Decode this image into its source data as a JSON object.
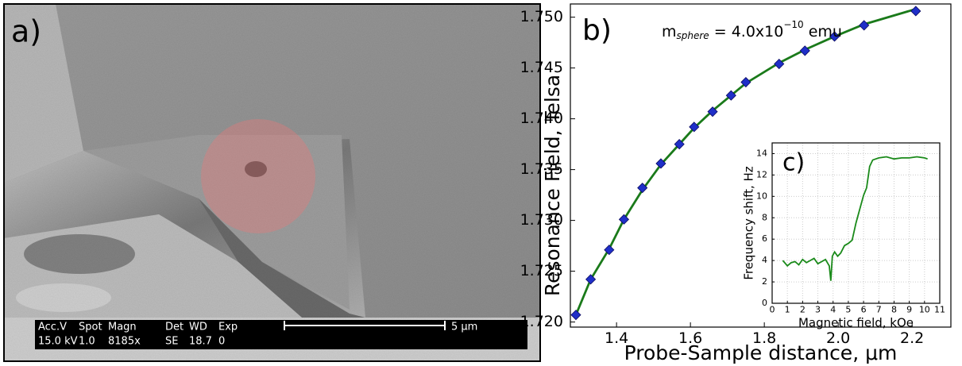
{
  "image_panel": {
    "label": "a)",
    "databar": {
      "headers": [
        "Acc.V",
        "Spot",
        "Magn",
        "Det",
        "WD",
        "Exp"
      ],
      "values": [
        "15.0 kV",
        "1.0",
        "8185x",
        "SE",
        "18.7",
        "0"
      ],
      "scale": "5 µm"
    }
  },
  "chart_data": [
    {
      "type": "scatter",
      "label": "b)",
      "annotation": {
        "base": "m",
        "subscript": "sphere",
        "middle": " = 4.0x10",
        "superscript": "−10",
        "unit": " emu"
      },
      "y_label": "Resonance Field, Telsa",
      "x_label": "Probe-Sample distance, μm",
      "x": [
        1.29,
        1.33,
        1.38,
        1.42,
        1.47,
        1.52,
        1.57,
        1.61,
        1.66,
        1.71,
        1.75,
        1.84,
        1.91,
        1.99,
        2.07,
        2.21
      ],
      "series": [
        {
          "color": "#1f2fc8",
          "marker": "diamond",
          "values": [
            1.7207,
            1.7242,
            1.7271,
            1.7301,
            1.7332,
            1.7356,
            1.7375,
            1.7392,
            1.7407,
            1.7423,
            1.7436,
            1.7454,
            1.7467,
            1.7481,
            1.7492,
            1.7506
          ]
        },
        {
          "color": "#1a7a1a",
          "marker": "line",
          "values": [
            1.7207,
            1.7242,
            1.7272,
            1.7301,
            1.733,
            1.7355,
            1.7375,
            1.7391,
            1.7408,
            1.7423,
            1.7435,
            1.7455,
            1.7468,
            1.7481,
            1.7493,
            1.7508
          ]
        }
      ],
      "xlim": [
        1.275,
        2.305
      ],
      "ylim": [
        1.7195,
        1.7513
      ],
      "xticks": [
        1.4,
        1.6,
        1.8,
        {
          "value": 2.0,
          "label": "2.0"
        },
        2.2
      ],
      "yticks": [
        {
          "value": 1.72,
          "label": "1.720"
        },
        1.725,
        {
          "value": 1.73,
          "label": "1.730"
        },
        1.735,
        {
          "value": 1.74,
          "label": "1.740"
        },
        1.745,
        {
          "value": 1.75,
          "label": "1.750"
        }
      ],
      "grid": false
    },
    {
      "type": "line",
      "label": "c)",
      "y_label": "Frequency shift, Hz",
      "x_label": "Magnetic field, kOe",
      "x": [
        0.7,
        1.0,
        1.25,
        1.5,
        1.75,
        2.0,
        2.25,
        2.5,
        2.75,
        3.0,
        3.25,
        3.5,
        3.75,
        3.85,
        3.95,
        4.1,
        4.3,
        4.5,
        4.75,
        5.0,
        5.25,
        5.5,
        5.75,
        6.0,
        6.2,
        6.4,
        6.6,
        6.8,
        7.0,
        7.5,
        8.0,
        8.5,
        9.0,
        9.5,
        10.0,
        10.2
      ],
      "series": [
        {
          "color": "#1a8a1a",
          "marker": "line",
          "values": [
            4.0,
            3.5,
            3.8,
            3.9,
            3.6,
            4.1,
            3.8,
            4.0,
            4.2,
            3.7,
            3.9,
            4.1,
            3.5,
            2.1,
            4.4,
            4.8,
            4.4,
            4.7,
            5.4,
            5.6,
            5.9,
            7.5,
            8.8,
            10.1,
            10.8,
            12.8,
            13.4,
            13.5,
            13.6,
            13.7,
            13.5,
            13.6,
            13.6,
            13.7,
            13.6,
            13.5
          ]
        }
      ],
      "xlim": [
        0,
        11
      ],
      "ylim": [
        0,
        15
      ],
      "xticks": [
        0,
        1,
        2,
        3,
        4,
        5,
        6,
        7,
        8,
        9,
        10,
        11
      ],
      "yticks": [
        0,
        2,
        4,
        6,
        8,
        10,
        12,
        14
      ],
      "grid": true
    }
  ]
}
